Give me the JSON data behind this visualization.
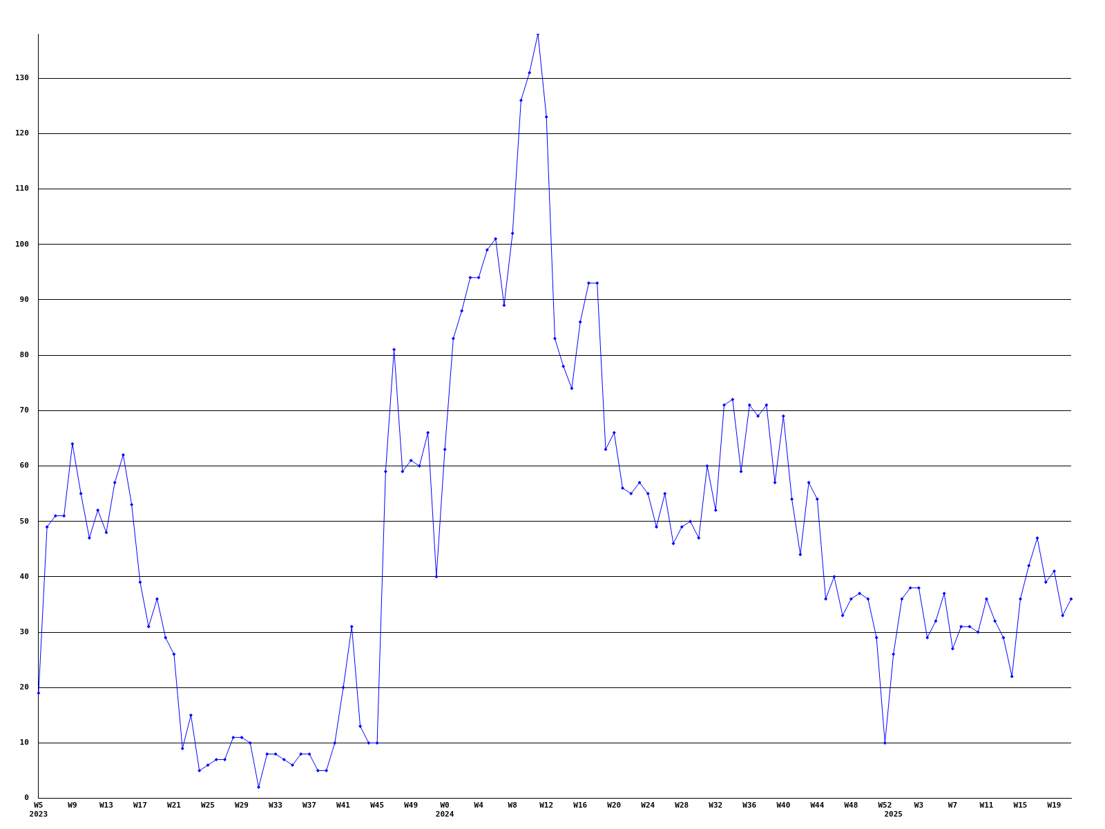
{
  "chart_data": {
    "type": "line",
    "categories": [
      "W5\n2023",
      null,
      null,
      null,
      "W9",
      null,
      null,
      null,
      "W13",
      null,
      null,
      null,
      "W17",
      null,
      null,
      null,
      "W21",
      null,
      null,
      null,
      "W25",
      null,
      null,
      null,
      "W29",
      null,
      null,
      null,
      "W33",
      null,
      null,
      null,
      "W37",
      null,
      null,
      null,
      "W41",
      null,
      null,
      null,
      "W45",
      null,
      null,
      null,
      "W49",
      null,
      null,
      null,
      "W0\n2024",
      null,
      null,
      null,
      "W4",
      null,
      null,
      null,
      "W8",
      null,
      null,
      null,
      "W12",
      null,
      null,
      null,
      "W16",
      null,
      null,
      null,
      "W20",
      null,
      null,
      null,
      "W24",
      null,
      null,
      null,
      "W28",
      null,
      null,
      null,
      "W32",
      null,
      null,
      null,
      "W36",
      null,
      null,
      null,
      "W40",
      null,
      null,
      null,
      "W44",
      null,
      null,
      null,
      "W48",
      null,
      null,
      null,
      "W52",
      "\n2025",
      null,
      null,
      "W3",
      null,
      null,
      null,
      "W7",
      null,
      null,
      null,
      "W11",
      null,
      null,
      null,
      "W15",
      null,
      null,
      null,
      "W19",
      null,
      null
    ],
    "series": [
      {
        "color": "#0000ff",
        "values": [
          19,
          49,
          51,
          51,
          64,
          55,
          47,
          52,
          48,
          57,
          62,
          53,
          39,
          31,
          36,
          29,
          26,
          9,
          15,
          5,
          6,
          7,
          7,
          11,
          11,
          10,
          2,
          8,
          8,
          7,
          6,
          8,
          8,
          5,
          5,
          10,
          20,
          31,
          13,
          10,
          10,
          59,
          81,
          59,
          61,
          60,
          66,
          40,
          63,
          83,
          88,
          94,
          94,
          99,
          101,
          89,
          102,
          126,
          131,
          138,
          123,
          83,
          78,
          74,
          86,
          93,
          93,
          63,
          66,
          56,
          55,
          57,
          55,
          49,
          55,
          46,
          49,
          50,
          47,
          60,
          52,
          71,
          72,
          59,
          71,
          69,
          71,
          57,
          69,
          54,
          44,
          57,
          54,
          36,
          40,
          33,
          36,
          37,
          36,
          29,
          10,
          26,
          36,
          38,
          38,
          29,
          32,
          37,
          27,
          31,
          31,
          30,
          36,
          32,
          29,
          22,
          36,
          42,
          47,
          39,
          41,
          33,
          36
        ]
      }
    ],
    "ylim": [
      0,
      138
    ],
    "yticks": [
      0,
      10,
      20,
      30,
      40,
      50,
      60,
      70,
      80,
      90,
      100,
      110,
      120,
      130
    ],
    "grid": "y",
    "legend": false,
    "marker": "diamond",
    "line_style": "solid"
  }
}
